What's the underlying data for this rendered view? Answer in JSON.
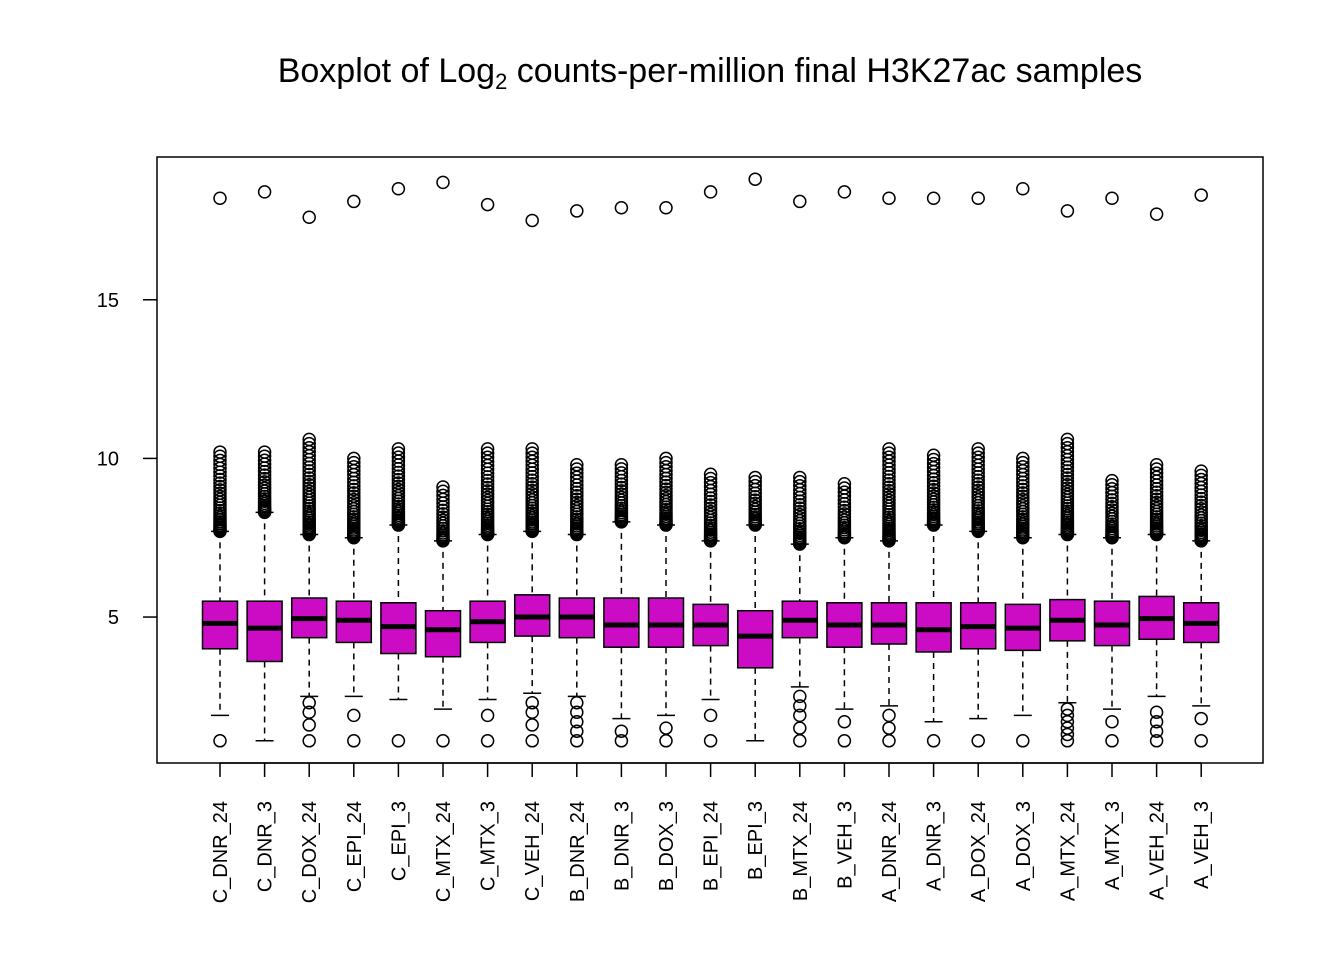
{
  "chart_data": {
    "type": "boxplot",
    "title": {
      "prefix": "Boxplot of Log",
      "subscript": "2",
      "suffix": " counts-per-million final H3K27ac samples"
    },
    "xlabel": "",
    "ylabel": "",
    "ylim": [
      0.4,
      19.5
    ],
    "y_ticks": [
      5,
      10,
      15
    ],
    "box_color": "#cc0cc4",
    "categories": [
      "C_DNR_24",
      "C_DNR_3",
      "C_DOX_24",
      "C_EPI_24",
      "C_EPI_3",
      "C_MTX_24",
      "C_MTX_3",
      "C_VEH_24",
      "B_DNR_24",
      "B_DNR_3",
      "B_DOX_3",
      "B_EPI_24",
      "B_EPI_3",
      "B_MTX_24",
      "B_VEH_3",
      "A_DNR_24",
      "A_DNR_3",
      "A_DOX_24",
      "A_DOX_3",
      "A_MTX_24",
      "A_MTX_3",
      "A_VEH_24",
      "A_VEH_3"
    ],
    "series": [
      {
        "lower_whisker": 1.9,
        "q1": 4.0,
        "median": 4.8,
        "q3": 5.5,
        "upper_whisker": 7.7,
        "outliers_low": [
          1.1
        ],
        "outliers_high": [
          18.2
        ],
        "outlier_band_high": [
          7.7,
          10.2
        ]
      },
      {
        "lower_whisker": 1.1,
        "q1": 3.6,
        "median": 4.65,
        "q3": 5.5,
        "upper_whisker": 8.3,
        "outliers_low": [],
        "outliers_high": [
          18.4
        ],
        "outlier_band_high": [
          8.3,
          10.2
        ]
      },
      {
        "lower_whisker": 2.5,
        "q1": 4.35,
        "median": 4.95,
        "q3": 5.6,
        "upper_whisker": 7.6,
        "outliers_low": [
          1.1,
          1.6,
          2.0,
          2.3
        ],
        "outliers_high": [
          17.6
        ],
        "outlier_band_high": [
          7.6,
          10.6
        ]
      },
      {
        "lower_whisker": 2.5,
        "q1": 4.2,
        "median": 4.9,
        "q3": 5.5,
        "upper_whisker": 7.5,
        "outliers_low": [
          1.1,
          1.9
        ],
        "outliers_high": [
          18.1
        ],
        "outlier_band_high": [
          7.5,
          10.0
        ]
      },
      {
        "lower_whisker": 2.4,
        "q1": 3.85,
        "median": 4.7,
        "q3": 5.45,
        "upper_whisker": 7.9,
        "outliers_low": [
          1.1
        ],
        "outliers_high": [
          18.5
        ],
        "outlier_band_high": [
          7.9,
          10.3
        ]
      },
      {
        "lower_whisker": 2.1,
        "q1": 3.75,
        "median": 4.6,
        "q3": 5.2,
        "upper_whisker": 7.4,
        "outliers_low": [
          1.1
        ],
        "outliers_high": [
          18.7
        ],
        "outlier_band_high": [
          7.4,
          9.1
        ]
      },
      {
        "lower_whisker": 2.4,
        "q1": 4.2,
        "median": 4.85,
        "q3": 5.5,
        "upper_whisker": 7.6,
        "outliers_low": [
          1.1,
          1.9
        ],
        "outliers_high": [
          18.0
        ],
        "outlier_band_high": [
          7.6,
          10.3
        ]
      },
      {
        "lower_whisker": 2.6,
        "q1": 4.4,
        "median": 5.0,
        "q3": 5.7,
        "upper_whisker": 7.7,
        "outliers_low": [
          1.1,
          1.6,
          2.0,
          2.3
        ],
        "outliers_high": [
          17.5
        ],
        "outlier_band_high": [
          7.7,
          10.3
        ]
      },
      {
        "lower_whisker": 2.5,
        "q1": 4.35,
        "median": 5.0,
        "q3": 5.6,
        "upper_whisker": 7.6,
        "outliers_low": [
          1.1,
          1.4,
          1.7,
          2.0,
          2.3
        ],
        "outliers_high": [
          17.8
        ],
        "outlier_band_high": [
          7.6,
          9.8
        ]
      },
      {
        "lower_whisker": 1.8,
        "q1": 4.05,
        "median": 4.75,
        "q3": 5.6,
        "upper_whisker": 8.0,
        "outliers_low": [
          1.1,
          1.4
        ],
        "outliers_high": [
          17.9
        ],
        "outlier_band_high": [
          8.0,
          9.8
        ]
      },
      {
        "lower_whisker": 1.9,
        "q1": 4.05,
        "median": 4.75,
        "q3": 5.6,
        "upper_whisker": 7.9,
        "outliers_low": [
          1.1,
          1.5
        ],
        "outliers_high": [
          17.9
        ],
        "outlier_band_high": [
          7.9,
          10.0
        ]
      },
      {
        "lower_whisker": 2.4,
        "q1": 4.1,
        "median": 4.75,
        "q3": 5.4,
        "upper_whisker": 7.4,
        "outliers_low": [
          1.1,
          1.9
        ],
        "outliers_high": [
          18.4
        ],
        "outlier_band_high": [
          7.4,
          9.5
        ]
      },
      {
        "lower_whisker": 1.1,
        "q1": 3.4,
        "median": 4.4,
        "q3": 5.2,
        "upper_whisker": 7.9,
        "outliers_low": [],
        "outliers_high": [
          18.8
        ],
        "outlier_band_high": [
          7.9,
          9.4
        ]
      },
      {
        "lower_whisker": 2.8,
        "q1": 4.35,
        "median": 4.9,
        "q3": 5.5,
        "upper_whisker": 7.3,
        "outliers_low": [
          1.1,
          1.5,
          1.9,
          2.2,
          2.5
        ],
        "outliers_high": [
          18.1
        ],
        "outlier_band_high": [
          7.3,
          9.4
        ]
      },
      {
        "lower_whisker": 2.1,
        "q1": 4.05,
        "median": 4.75,
        "q3": 5.45,
        "upper_whisker": 7.5,
        "outliers_low": [
          1.1,
          1.7
        ],
        "outliers_high": [
          18.4
        ],
        "outlier_band_high": [
          7.5,
          9.2
        ]
      },
      {
        "lower_whisker": 2.2,
        "q1": 4.15,
        "median": 4.75,
        "q3": 5.45,
        "upper_whisker": 7.4,
        "outliers_low": [
          1.1,
          1.5,
          1.9
        ],
        "outliers_high": [
          18.2
        ],
        "outlier_band_high": [
          7.4,
          10.3
        ]
      },
      {
        "lower_whisker": 1.7,
        "q1": 3.9,
        "median": 4.6,
        "q3": 5.45,
        "upper_whisker": 7.9,
        "outliers_low": [
          1.1
        ],
        "outliers_high": [
          18.2
        ],
        "outlier_band_high": [
          7.9,
          10.1
        ]
      },
      {
        "lower_whisker": 1.8,
        "q1": 4.0,
        "median": 4.7,
        "q3": 5.45,
        "upper_whisker": 7.7,
        "outliers_low": [
          1.1
        ],
        "outliers_high": [
          18.2
        ],
        "outlier_band_high": [
          7.7,
          10.3
        ]
      },
      {
        "lower_whisker": 1.9,
        "q1": 3.95,
        "median": 4.65,
        "q3": 5.4,
        "upper_whisker": 7.5,
        "outliers_low": [
          1.1
        ],
        "outliers_high": [
          18.5
        ],
        "outlier_band_high": [
          7.5,
          10.0
        ]
      },
      {
        "lower_whisker": 2.3,
        "q1": 4.25,
        "median": 4.9,
        "q3": 5.55,
        "upper_whisker": 7.6,
        "outliers_low": [
          1.1,
          1.3,
          1.5,
          1.7,
          1.9,
          2.1
        ],
        "outliers_high": [
          17.8
        ],
        "outlier_band_high": [
          7.6,
          10.6
        ]
      },
      {
        "lower_whisker": 2.1,
        "q1": 4.1,
        "median": 4.75,
        "q3": 5.5,
        "upper_whisker": 7.5,
        "outliers_low": [
          1.1,
          1.7
        ],
        "outliers_high": [
          18.2
        ],
        "outlier_band_high": [
          7.5,
          9.3
        ]
      },
      {
        "lower_whisker": 2.5,
        "q1": 4.3,
        "median": 4.95,
        "q3": 5.65,
        "upper_whisker": 7.6,
        "outliers_low": [
          1.1,
          1.4,
          1.7,
          2.0
        ],
        "outliers_high": [
          17.7
        ],
        "outlier_band_high": [
          7.6,
          9.8
        ]
      },
      {
        "lower_whisker": 2.2,
        "q1": 4.2,
        "median": 4.8,
        "q3": 5.45,
        "upper_whisker": 7.4,
        "outliers_low": [
          1.1,
          1.8
        ],
        "outliers_high": [
          18.3
        ],
        "outlier_band_high": [
          7.4,
          9.6
        ]
      }
    ]
  }
}
